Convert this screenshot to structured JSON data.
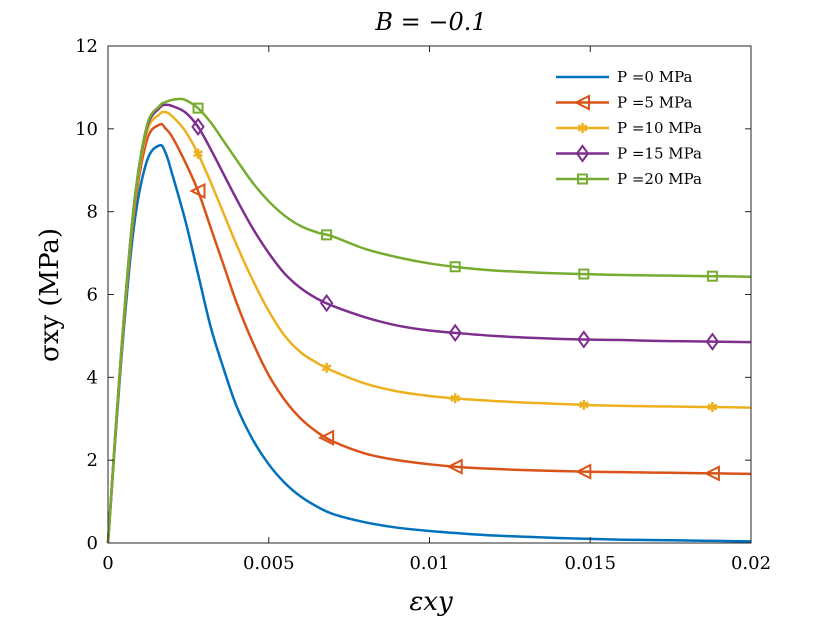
{
  "chart_data": {
    "type": "line",
    "title": "B = −0.1",
    "xlabel": "εxy",
    "ylabel": "σxy (MPa)",
    "xlim": [
      0,
      0.02
    ],
    "ylim": [
      0,
      12
    ],
    "x_ticks": [
      0,
      0.005,
      0.01,
      0.015,
      0.02
    ],
    "x_tick_labels": [
      "0",
      "0.005",
      "0.01",
      "0.015",
      "0.02"
    ],
    "y_ticks": [
      0,
      2,
      4,
      6,
      8,
      10,
      12
    ],
    "y_tick_labels": [
      "0",
      "2",
      "4",
      "6",
      "8",
      "10",
      "12"
    ],
    "legend_position": "top-right",
    "series": [
      {
        "name": "P =0 MPa",
        "color": "#0072BD",
        "marker": "none",
        "x": [
          0,
          0.0004,
          0.0008,
          0.0012,
          0.0016,
          0.0018,
          0.002,
          0.0024,
          0.0028,
          0.0032,
          0.0036,
          0.004,
          0.0045,
          0.005,
          0.0055,
          0.006,
          0.0065,
          0.007,
          0.008,
          0.009,
          0.01,
          0.011,
          0.012,
          0.013,
          0.014,
          0.015,
          0.016,
          0.017,
          0.018,
          0.019,
          0.02
        ],
        "values": [
          0,
          4.3,
          7.6,
          9.2,
          9.6,
          9.4,
          8.9,
          7.8,
          6.5,
          5.2,
          4.2,
          3.3,
          2.5,
          1.9,
          1.45,
          1.12,
          0.88,
          0.7,
          0.5,
          0.37,
          0.29,
          0.23,
          0.18,
          0.15,
          0.12,
          0.1,
          0.08,
          0.07,
          0.06,
          0.05,
          0.04
        ]
      },
      {
        "name": "P =5 MPa",
        "color": "#D95319",
        "marker": "triangle-left",
        "marker_x": [
          0.0028,
          0.0068,
          0.0108,
          0.0148,
          0.0188
        ],
        "x": [
          0,
          0.0004,
          0.0008,
          0.0012,
          0.0016,
          0.0018,
          0.002,
          0.0024,
          0.0028,
          0.0032,
          0.0036,
          0.004,
          0.0045,
          0.005,
          0.0055,
          0.006,
          0.0065,
          0.007,
          0.008,
          0.009,
          0.01,
          0.011,
          0.012,
          0.013,
          0.014,
          0.015,
          0.016,
          0.017,
          0.018,
          0.019,
          0.02
        ],
        "values": [
          0,
          4.4,
          7.9,
          9.7,
          10.1,
          10.0,
          9.8,
          9.2,
          8.5,
          7.6,
          6.7,
          5.8,
          4.85,
          4.05,
          3.45,
          3.0,
          2.68,
          2.45,
          2.16,
          2.0,
          1.9,
          1.83,
          1.79,
          1.76,
          1.74,
          1.72,
          1.71,
          1.7,
          1.69,
          1.68,
          1.67
        ]
      },
      {
        "name": "P =10 MPa",
        "color": "#EDB120",
        "marker": "asterisk",
        "marker_x": [
          0.0028,
          0.0068,
          0.0108,
          0.0148,
          0.0188
        ],
        "x": [
          0,
          0.0004,
          0.0008,
          0.0012,
          0.0016,
          0.0018,
          0.002,
          0.0024,
          0.0028,
          0.0032,
          0.0036,
          0.004,
          0.0045,
          0.005,
          0.0055,
          0.006,
          0.0065,
          0.007,
          0.008,
          0.009,
          0.01,
          0.011,
          0.012,
          0.013,
          0.014,
          0.015,
          0.016,
          0.017,
          0.018,
          0.019,
          0.02
        ],
        "values": [
          0,
          4.45,
          8.0,
          9.9,
          10.35,
          10.4,
          10.3,
          9.95,
          9.4,
          8.7,
          7.95,
          7.2,
          6.35,
          5.6,
          5.0,
          4.6,
          4.35,
          4.15,
          3.85,
          3.66,
          3.55,
          3.48,
          3.43,
          3.39,
          3.36,
          3.33,
          3.31,
          3.3,
          3.29,
          3.28,
          3.27
        ]
      },
      {
        "name": "P =15 MPa",
        "color": "#7E2F8E",
        "marker": "diamond",
        "marker_x": [
          0.0028,
          0.0068,
          0.0108,
          0.0148,
          0.0188
        ],
        "x": [
          0,
          0.0004,
          0.0008,
          0.0012,
          0.0016,
          0.0018,
          0.002,
          0.0024,
          0.0028,
          0.0032,
          0.0036,
          0.004,
          0.0045,
          0.005,
          0.0055,
          0.006,
          0.0065,
          0.007,
          0.008,
          0.009,
          0.01,
          0.011,
          0.012,
          0.013,
          0.014,
          0.015,
          0.016,
          0.017,
          0.018,
          0.019,
          0.02
        ],
        "values": [
          0,
          4.5,
          8.1,
          10.0,
          10.5,
          10.58,
          10.55,
          10.4,
          10.05,
          9.5,
          8.9,
          8.3,
          7.6,
          7.0,
          6.5,
          6.15,
          5.9,
          5.72,
          5.45,
          5.25,
          5.13,
          5.06,
          5.0,
          4.96,
          4.93,
          4.91,
          4.9,
          4.88,
          4.87,
          4.86,
          4.85
        ]
      },
      {
        "name": "P =20 MPa",
        "color": "#77AC30",
        "marker": "square",
        "marker_x": [
          0.0028,
          0.0068,
          0.0108,
          0.0148,
          0.0188
        ],
        "x": [
          0,
          0.0004,
          0.0008,
          0.0012,
          0.0016,
          0.0018,
          0.002,
          0.0022,
          0.0024,
          0.0028,
          0.0032,
          0.0036,
          0.004,
          0.0045,
          0.005,
          0.0055,
          0.006,
          0.0065,
          0.007,
          0.008,
          0.009,
          0.01,
          0.011,
          0.012,
          0.013,
          0.014,
          0.015,
          0.016,
          0.017,
          0.018,
          0.019,
          0.02
        ],
        "values": [
          0,
          4.5,
          8.1,
          10.05,
          10.55,
          10.65,
          10.7,
          10.72,
          10.7,
          10.5,
          10.15,
          9.7,
          9.25,
          8.7,
          8.25,
          7.9,
          7.65,
          7.5,
          7.4,
          7.1,
          6.9,
          6.75,
          6.65,
          6.58,
          6.54,
          6.51,
          6.49,
          6.47,
          6.46,
          6.45,
          6.44,
          6.43
        ]
      }
    ]
  }
}
